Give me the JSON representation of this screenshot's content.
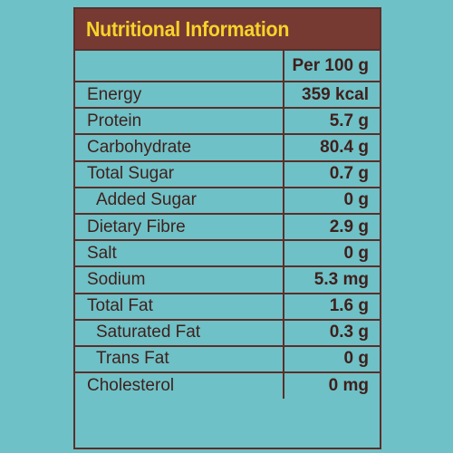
{
  "title": "Nutritional Information",
  "column_header": "Per 100 g",
  "rows": [
    {
      "label": "Energy",
      "value": "359 kcal"
    },
    {
      "label": "Protein",
      "value": "5.7 g"
    },
    {
      "label": "Carbohydrate",
      "value": "80.4 g"
    },
    {
      "label": "Total Sugar",
      "value": "0.7 g"
    },
    {
      "label": "Added Sugar",
      "value": "0 g"
    },
    {
      "label": "Dietary Fibre",
      "value": "2.9 g"
    },
    {
      "label": "Salt",
      "value": "0 g"
    },
    {
      "label": "Sodium",
      "value": "5.3 mg"
    },
    {
      "label": "Total Fat",
      "value": "1.6 g"
    },
    {
      "label": "Saturated Fat",
      "value": "0.3 g"
    },
    {
      "label": "Trans Fat",
      "value": "0 g"
    },
    {
      "label": "Cholesterol",
      "value": "0 mg"
    }
  ],
  "colors": {
    "background": "#6ec1c6",
    "title_bar": "#763a33",
    "title_text": "#f7d22a",
    "text": "#3f1f1c",
    "border": "#5c2e2a"
  }
}
